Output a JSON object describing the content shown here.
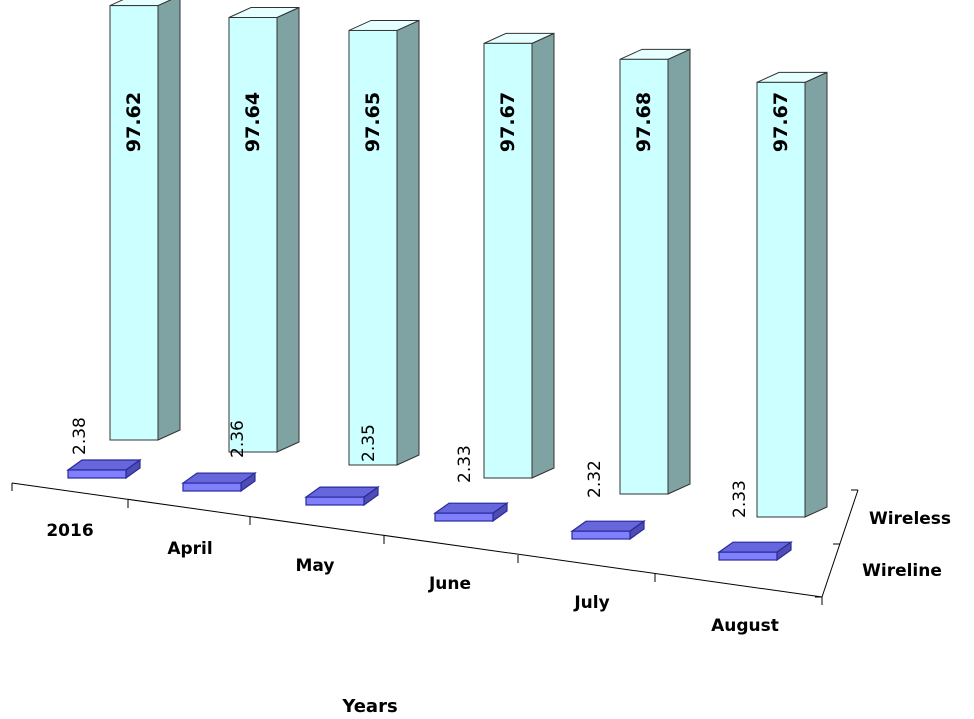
{
  "chart_data": {
    "type": "bar",
    "variant": "3d-column",
    "categories": [
      "2016",
      "April",
      "May",
      "June",
      "July",
      "August"
    ],
    "series": [
      {
        "name": "Wireless",
        "values": [
          97.62,
          97.64,
          97.65,
          97.67,
          97.68,
          97.67
        ]
      },
      {
        "name": "Wireline",
        "values": [
          2.38,
          2.36,
          2.35,
          2.33,
          2.32,
          2.33
        ]
      }
    ],
    "data_labels": {
      "Wireless": [
        "97.62",
        "97.64",
        "97.65",
        "97.67",
        "97.68",
        "97.67"
      ],
      "Wireline": [
        "2.38",
        "2.36",
        "2.35",
        "2.33",
        "2.32",
        "2.33"
      ]
    },
    "xlabel": "Years",
    "ylim": [
      0,
      100
    ],
    "colors": {
      "wireless_front": "#ccffff",
      "wireless_side": "#7fa3a3",
      "wireless_top": "#e6ffff",
      "wireline_front": "#8080ff",
      "wireline_side": "#4d4db3",
      "wireline_top": "#6666dd",
      "wireline_stroke": "#2a2a99",
      "axis": "#000000"
    }
  }
}
